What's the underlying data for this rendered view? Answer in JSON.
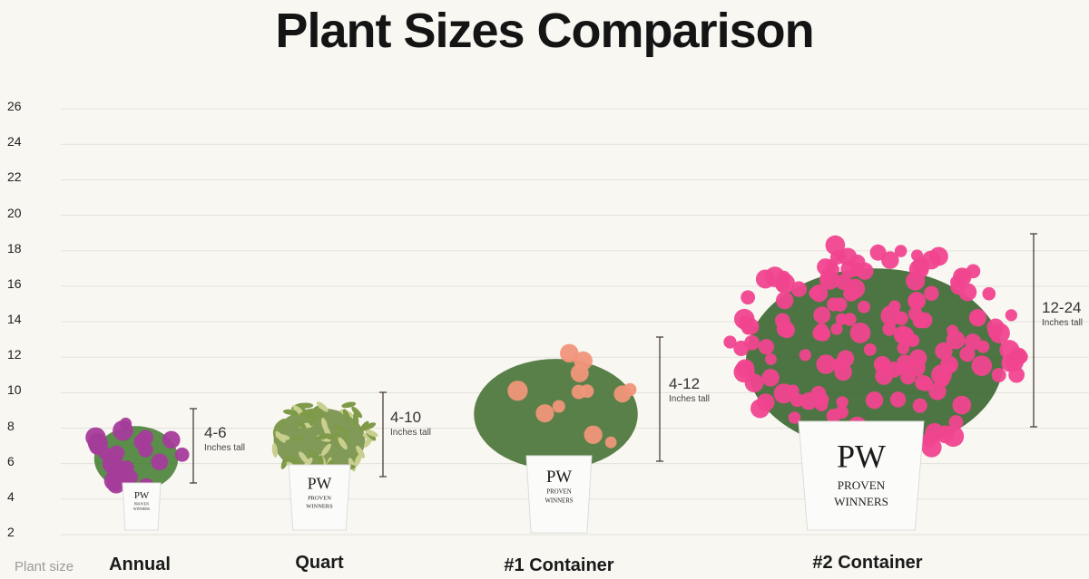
{
  "title": "Plant Sizes Comparison",
  "y_axis": {
    "ticks": [
      2,
      4,
      6,
      8,
      10,
      12,
      14,
      16,
      18,
      20,
      22,
      24,
      26
    ]
  },
  "x_axis_label": "Plant size",
  "unit_label": "Inches tall",
  "pot_brand": [
    "PROVEN",
    "WINNERS"
  ],
  "pot_logo": "PW",
  "plants": [
    {
      "name": "Annual",
      "range": "4-6",
      "flower_color": "#a53c9a"
    },
    {
      "name": "Quart",
      "range": "4-10",
      "flower_color": "#c9cf8f"
    },
    {
      "name": "#1 Container",
      "range": "4-12",
      "flower_color": "#f0957a"
    },
    {
      "name": "#2 Container",
      "range": "12-24",
      "flower_color": "#f0448f"
    }
  ]
}
